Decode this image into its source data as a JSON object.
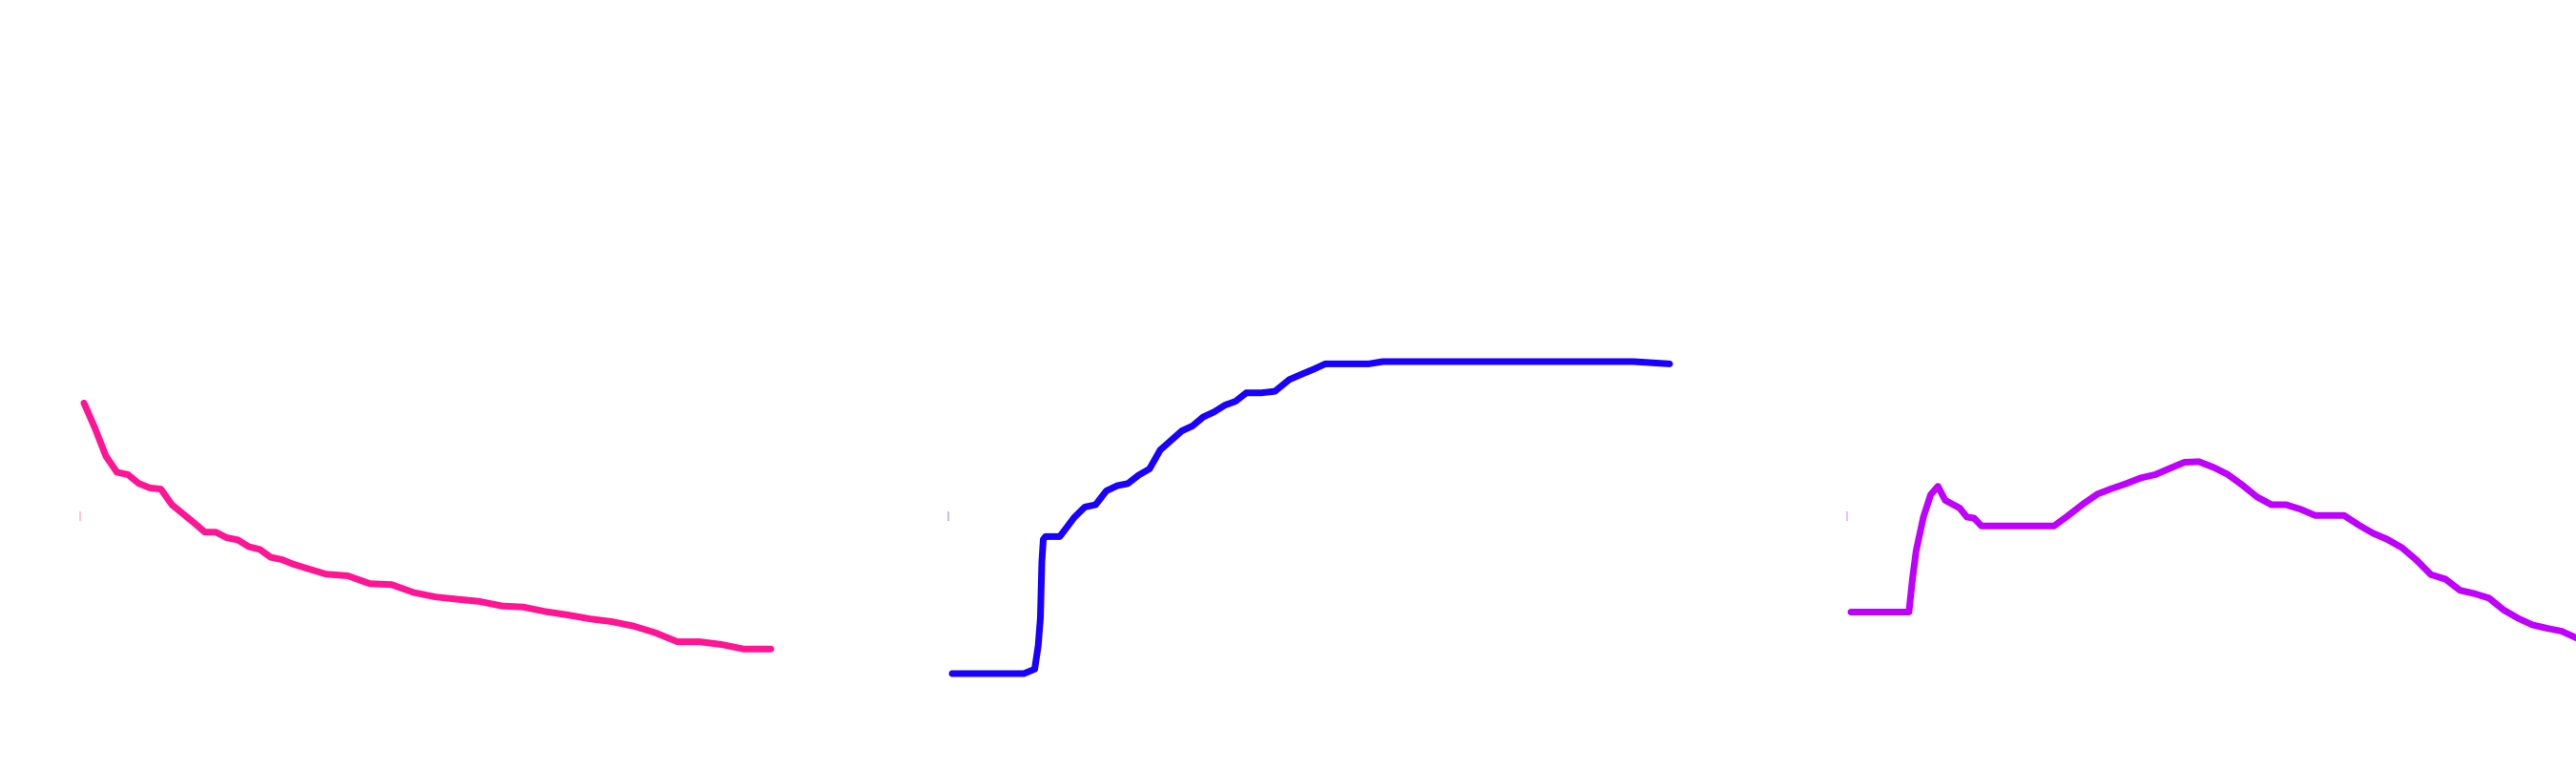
{
  "chart_data": [
    {
      "type": "line",
      "title": "",
      "xlabel": "",
      "ylabel": "",
      "grid": false,
      "legend": "none",
      "color": "#ff1493",
      "xlim": [
        0,
        100
      ],
      "ylim": [
        0,
        100
      ],
      "series": [
        {
          "x": [
            0,
            1.6,
            3.2,
            4.8,
            6.4,
            8,
            9.6,
            11.2,
            12.8,
            14.4,
            16,
            17.6,
            19.2,
            20.8,
            22.4,
            24,
            25.6,
            27.2,
            28.8,
            30.4,
            32,
            35.2,
            38.4,
            41.6,
            44.8,
            48,
            51.2,
            54.4,
            57.6,
            60.8,
            64,
            67.2,
            70.4,
            73.6,
            76.8,
            80,
            83.2,
            86.4,
            89.6,
            92.8,
            96,
            100
          ],
          "y": [
            48.4,
            43.9,
            38.9,
            36,
            35.6,
            34,
            33.2,
            33,
            30.2,
            28.6,
            27,
            25.3,
            25.3,
            24.3,
            23.9,
            22.7,
            22.2,
            20.8,
            20.4,
            19.6,
            19,
            17.8,
            17.5,
            16.1,
            15.9,
            14.5,
            13.7,
            13.3,
            12.9,
            12.1,
            11.9,
            11.1,
            10.5,
            9.8,
            9.3,
            8.5,
            7.3,
            5.7,
            5.7,
            5.2,
            4.4,
            4.4
          ]
        }
      ]
    },
    {
      "type": "line",
      "title": "",
      "xlabel": "",
      "ylabel": "",
      "grid": false,
      "legend": "none",
      "color": "#1a00ff",
      "xlim": [
        0,
        100
      ],
      "ylim": [
        0,
        100
      ],
      "series": [
        {
          "x": [
            0,
            5,
            10,
            11.5,
            12,
            12.3,
            12.5,
            12.7,
            13,
            15,
            16,
            17,
            18.5,
            20,
            21.5,
            23,
            24.5,
            26,
            27.5,
            29,
            30.5,
            32,
            33.5,
            35,
            36.5,
            38,
            39.5,
            41,
            43,
            45,
            47,
            49,
            50.5,
            52,
            54,
            56,
            58,
            60,
            65,
            70,
            75,
            80,
            85,
            90,
            95,
            100
          ],
          "y": [
            0,
            0,
            0,
            0.8,
            5,
            10,
            20,
            24,
            24.5,
            24.5,
            26.2,
            27.9,
            29.8,
            30.2,
            32.7,
            33.6,
            34,
            35.5,
            36.6,
            40,
            41.7,
            43.4,
            44.3,
            45.9,
            46.8,
            48,
            48.7,
            50.2,
            50.2,
            50.5,
            52.6,
            53.7,
            54.5,
            55.4,
            55.4,
            55.4,
            55.4,
            55.8,
            55.8,
            55.8,
            55.8,
            55.8,
            55.8,
            55.8,
            55.8,
            55.4
          ]
        }
      ]
    },
    {
      "type": "line",
      "title": "",
      "xlabel": "",
      "ylabel": "",
      "grid": false,
      "legend": "none",
      "color": "#bf00ff",
      "xlim": [
        0,
        100
      ],
      "ylim": [
        0,
        100
      ],
      "series": [
        {
          "x": [
            0,
            4,
            8,
            8.5,
            9,
            10,
            11,
            12,
            13,
            14,
            15,
            16,
            17,
            18,
            19,
            20,
            22,
            24,
            26,
            28,
            30,
            32,
            34,
            36,
            38,
            40,
            42,
            44,
            46,
            48,
            50,
            52,
            54,
            56,
            58,
            60,
            62,
            64,
            66,
            68,
            70,
            72,
            74,
            76,
            78,
            80,
            82,
            84,
            86,
            88,
            90,
            92,
            94,
            96,
            98,
            100
          ],
          "y": [
            11,
            11,
            11,
            17,
            22,
            28,
            32,
            33.5,
            31,
            30.3,
            29.6,
            28,
            27.8,
            26.4,
            26.4,
            26.4,
            26.4,
            26.4,
            26.4,
            26.4,
            28.3,
            30.3,
            32.1,
            33.1,
            34,
            35,
            35.6,
            36.7,
            37.8,
            37.9,
            36.9,
            35.6,
            33.7,
            31.6,
            30.2,
            30.2,
            29.4,
            28.3,
            28.3,
            28.3,
            26.6,
            25.1,
            24,
            22.5,
            20.3,
            17.7,
            16.9,
            14.9,
            14.3,
            13.5,
            11.4,
            9.9,
            8.7,
            8.1,
            7.6,
            6.4
          ]
        }
      ]
    }
  ]
}
